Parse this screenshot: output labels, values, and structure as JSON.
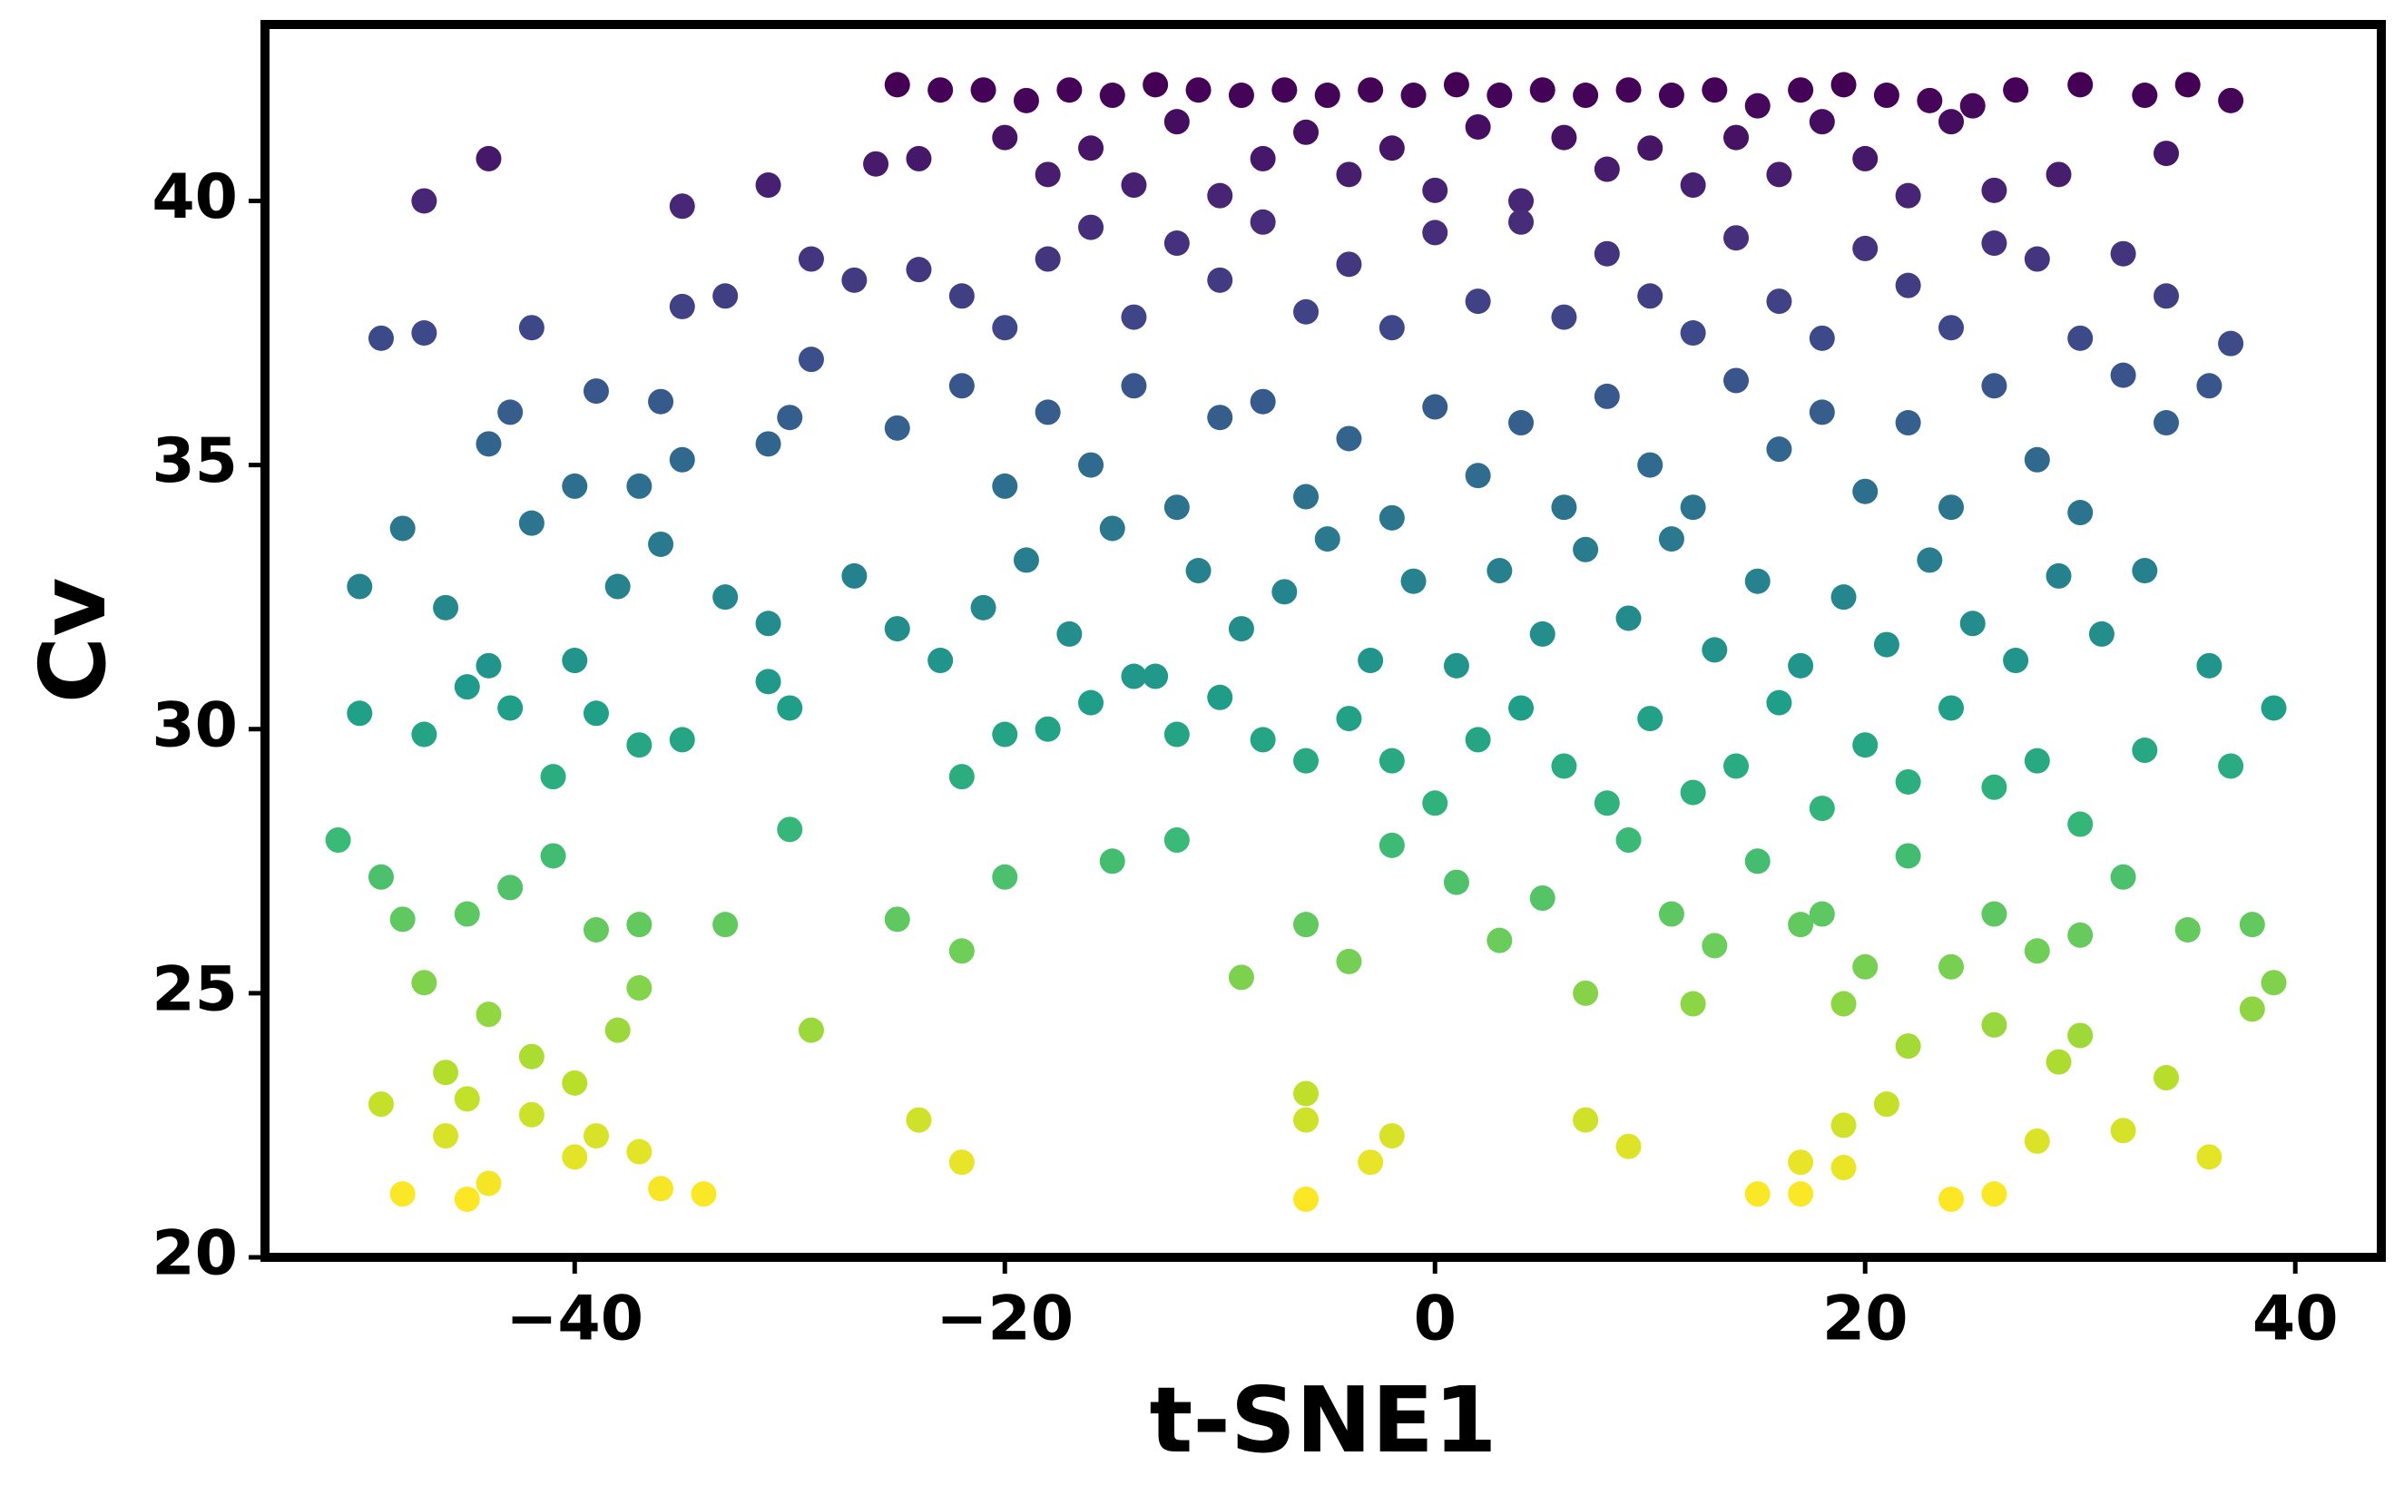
{
  "chart_data": {
    "type": "scatter",
    "x_label": "t-SNE1",
    "y_label": "Cv",
    "colormap": "viridis_r",
    "color_by": "values",
    "xlim": [
      -54.4,
      44.0
    ],
    "ylim": [
      20,
      43.34
    ],
    "xticks": [
      {
        "value": -40,
        "label": "−40"
      },
      {
        "value": -20,
        "label": "−20"
      },
      0,
      20,
      40
    ],
    "yticks": [
      20,
      25,
      30,
      35,
      40
    ],
    "grid": false,
    "x": [
      -25,
      -23,
      -21,
      -19,
      -17,
      -15,
      -13,
      -11,
      -9,
      -7,
      -5,
      -3,
      -1,
      1,
      3,
      5,
      7,
      9,
      11,
      13,
      15,
      17,
      19,
      21,
      23,
      25,
      27,
      30,
      33,
      35,
      37,
      -44,
      -47,
      -35,
      -31,
      -26,
      -24,
      -20,
      -18,
      -16,
      -14,
      -12,
      -10,
      -8,
      -6,
      -4,
      -2,
      0,
      2,
      4,
      6,
      8,
      10,
      12,
      14,
      16,
      18,
      20,
      22,
      24,
      26,
      29,
      34,
      -49,
      -47,
      -42,
      -33,
      -35,
      -29,
      -27,
      -24,
      -22,
      -20,
      -18,
      -16,
      -14,
      -12,
      -10,
      -8,
      -6,
      -4,
      -2,
      0,
      2,
      4,
      6,
      8,
      10,
      12,
      14,
      16,
      18,
      20,
      22,
      24,
      26,
      28,
      30,
      32,
      34,
      37,
      -44,
      -43,
      -40,
      -39,
      -37,
      -36,
      -35,
      -31,
      -30,
      -29,
      -25,
      -22,
      -20,
      -18,
      -16,
      -14,
      -12,
      -10,
      -8,
      -6,
      -4,
      -2,
      0,
      2,
      4,
      6,
      8,
      10,
      12,
      14,
      16,
      18,
      20,
      22,
      24,
      26,
      28,
      30,
      32,
      34,
      36,
      -50,
      -48,
      -46,
      -44,
      -42,
      -40,
      -38,
      -36,
      -33,
      -31,
      -27,
      -25,
      -23,
      -21,
      -19,
      -17,
      -15,
      -13,
      -11,
      -9,
      -7,
      -5,
      -3,
      -1,
      1,
      3,
      5,
      7,
      9,
      11,
      13,
      15,
      17,
      19,
      21,
      23,
      25,
      27,
      29,
      31,
      33,
      36,
      -50,
      -47,
      -45,
      -43,
      -41,
      -39,
      -37,
      -35,
      -31,
      -30,
      -30,
      -20,
      -18,
      -16,
      -14,
      -12,
      -10,
      -8,
      -6,
      -4,
      -2,
      0,
      2,
      4,
      6,
      8,
      10,
      12,
      14,
      16,
      18,
      20,
      22,
      24,
      26,
      28,
      30,
      33,
      37,
      39,
      -22,
      -51,
      -49,
      -48,
      -45,
      -43,
      -41,
      -39,
      -37,
      -33,
      -25,
      -22,
      -20,
      -15,
      -12,
      -9,
      -6,
      -4,
      -2,
      1,
      3,
      5,
      7,
      9,
      11,
      13,
      15,
      17,
      18,
      20,
      22,
      24,
      26,
      28,
      30,
      32,
      35,
      38,
      39,
      -47,
      -44,
      -42,
      -38,
      -37,
      -29,
      12,
      19,
      22,
      26,
      29,
      30,
      34,
      38,
      -46,
      -40,
      -49,
      -46,
      -45,
      -42,
      -39,
      -37,
      -24,
      -22,
      -6,
      -6,
      -3,
      -2,
      7,
      9,
      17,
      19,
      21,
      28,
      32,
      36,
      -48,
      -45,
      -44,
      -40,
      -36,
      -34,
      -6,
      15,
      17,
      24,
      26,
      19
    ],
    "values": [
      42.2,
      42.1,
      42.1,
      41.9,
      42.1,
      42.0,
      42.2,
      42.1,
      42.0,
      42.1,
      42.0,
      42.1,
      42.0,
      42.2,
      42.0,
      42.1,
      42.0,
      42.1,
      42.0,
      42.1,
      41.8,
      42.1,
      42.2,
      42.0,
      41.9,
      41.8,
      42.1,
      42.2,
      42.0,
      42.2,
      41.9,
      40.8,
      40.0,
      39.9,
      40.3,
      40.7,
      40.8,
      41.2,
      40.5,
      41.0,
      40.3,
      41.5,
      40.1,
      40.8,
      41.3,
      40.5,
      41.0,
      40.2,
      41.4,
      40.0,
      41.2,
      40.6,
      41.0,
      40.3,
      41.2,
      40.5,
      41.5,
      40.8,
      40.1,
      41.5,
      40.2,
      40.5,
      40.9,
      37.4,
      37.5,
      37.6,
      38.2,
      38.0,
      38.9,
      38.5,
      38.7,
      38.2,
      37.6,
      38.9,
      39.5,
      37.8,
      39.2,
      38.5,
      39.6,
      37.9,
      38.8,
      37.6,
      39.4,
      38.1,
      39.6,
      37.8,
      39.0,
      38.2,
      37.5,
      39.3,
      38.1,
      37.4,
      39.1,
      38.4,
      37.6,
      39.2,
      38.9,
      37.4,
      39.0,
      38.2,
      37.3,
      35.4,
      36.0,
      34.6,
      36.4,
      34.6,
      36.2,
      35.1,
      35.4,
      35.9,
      37.0,
      35.7,
      36.5,
      34.6,
      36.0,
      35.0,
      36.5,
      34.2,
      35.9,
      36.2,
      34.4,
      35.5,
      34.0,
      36.1,
      34.8,
      35.8,
      34.2,
      36.3,
      35.0,
      34.2,
      36.6,
      35.3,
      36.0,
      34.5,
      35.8,
      34.2,
      36.5,
      35.1,
      34.1,
      36.7,
      35.8,
      36.5,
      32.7,
      33.8,
      32.3,
      31.2,
      33.9,
      31.3,
      32.7,
      33.5,
      32.5,
      32.0,
      32.9,
      31.9,
      31.3,
      32.3,
      33.2,
      31.8,
      33.8,
      31.0,
      33.0,
      31.9,
      32.6,
      33.6,
      31.3,
      32.8,
      31.2,
      33.0,
      31.8,
      33.4,
      32.1,
      33.6,
      31.5,
      32.8,
      31.2,
      32.5,
      31.6,
      33.2,
      32.0,
      31.3,
      32.9,
      31.8,
      33.0,
      31.2,
      30.3,
      29.9,
      30.8,
      30.4,
      29.1,
      30.3,
      29.7,
      29.8,
      30.9,
      30.4,
      28.1,
      29.9,
      30.0,
      30.5,
      31.0,
      29.9,
      30.6,
      29.8,
      29.4,
      30.2,
      29.4,
      28.6,
      29.8,
      30.4,
      29.3,
      28.6,
      30.2,
      28.8,
      29.3,
      30.5,
      28.5,
      29.7,
      29.0,
      30.4,
      28.9,
      29.4,
      28.2,
      29.6,
      29.3,
      30.4,
      29.1,
      27.9,
      27.2,
      26.4,
      26.5,
      27.0,
      27.6,
      26.2,
      26.3,
      26.3,
      26.4,
      25.8,
      27.2,
      27.5,
      27.9,
      25.3,
      26.3,
      25.6,
      27.8,
      27.1,
      26.0,
      26.8,
      25.0,
      27.9,
      26.5,
      25.9,
      27.5,
      26.3,
      26.5,
      25.5,
      27.6,
      25.5,
      26.5,
      25.8,
      26.1,
      27.2,
      26.2,
      26.3,
      25.2,
      25.2,
      24.6,
      23.8,
      24.3,
      25.1,
      24.3,
      24.8,
      24.8,
      24.0,
      24.4,
      23.7,
      24.2,
      23.4,
      24.7,
      23.5,
      23.3,
      22.9,
      22.3,
      23.0,
      22.7,
      22.3,
      22.0,
      22.6,
      21.8,
      23.1,
      22.6,
      21.8,
      22.3,
      22.6,
      22.1,
      21.8,
      22.5,
      22.9,
      22.2,
      22.4,
      21.9,
      21.2,
      21.1,
      21.4,
      21.9,
      21.3,
      21.2,
      21.1,
      21.2,
      21.2,
      21.1,
      21.2,
      21.7
    ]
  }
}
